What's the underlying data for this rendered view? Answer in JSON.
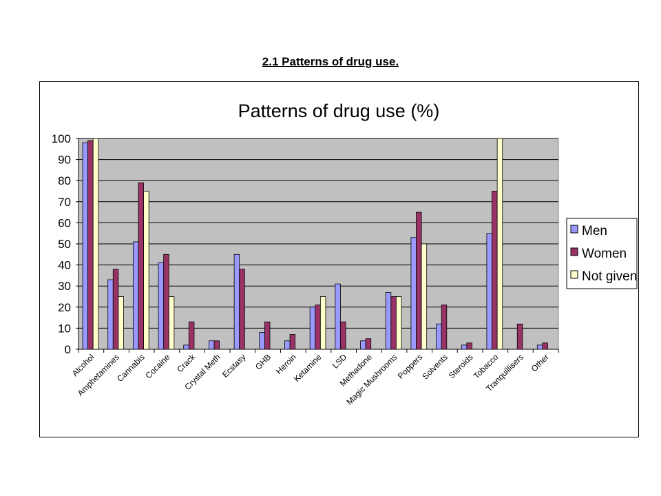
{
  "page": {
    "heading": "2.1 Patterns of drug use."
  },
  "chart_data": {
    "type": "bar",
    "title": "Patterns of drug use (%)",
    "xlabel": "",
    "ylabel": "",
    "ylim": [
      0,
      100
    ],
    "yticks": [
      0,
      10,
      20,
      30,
      40,
      50,
      60,
      70,
      80,
      90,
      100
    ],
    "grid": true,
    "legend_position": "right",
    "plot_background": "#c0c0c0",
    "categories": [
      "Alcohol",
      "Amphetamines",
      "Cannabis",
      "Cocaine",
      "Crack",
      "Crystal Meth",
      "Ecstasy",
      "GHB",
      "Heroin",
      "Ketamine",
      "LSD",
      "Methadone",
      "Magic Mushrooms",
      "Poppers",
      "Solvents",
      "Steroids",
      "Tobacco",
      "Tranquillisers",
      "Other"
    ],
    "series": [
      {
        "name": "Men",
        "color": "#9999ff",
        "values": [
          98,
          33,
          51,
          41,
          2,
          4,
          45,
          8,
          4,
          20,
          31,
          4,
          27,
          53,
          12,
          2,
          55,
          0,
          2
        ]
      },
      {
        "name": "Women",
        "color": "#993366",
        "values": [
          99,
          38,
          79,
          45,
          13,
          4,
          38,
          13,
          7,
          21,
          13,
          5,
          25,
          65,
          21,
          3,
          75,
          12,
          3
        ]
      },
      {
        "name": "Not given",
        "color": "#ffffcc",
        "values": [
          100,
          25,
          75,
          25,
          0,
          0,
          0,
          0,
          0,
          25,
          0,
          0,
          25,
          50,
          0,
          0,
          100,
          0,
          0
        ]
      }
    ]
  }
}
